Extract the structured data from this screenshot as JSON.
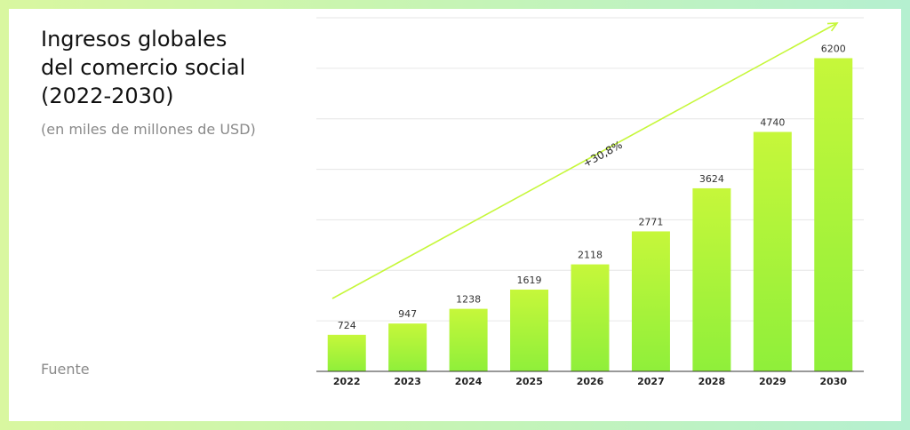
{
  "header": {
    "title_lines": [
      "Ingresos globales",
      "del comercio social",
      "(2022-2030)"
    ],
    "subtitle": "(en miles de millones de USD)"
  },
  "footer": {
    "source": "Fuente"
  },
  "chart_data": {
    "type": "bar",
    "title": "Ingresos globales del comercio social (2022-2030)",
    "subtitle": "(en miles de millones de USD)",
    "categories": [
      "2022",
      "2023",
      "2024",
      "2025",
      "2026",
      "2027",
      "2028",
      "2029",
      "2030"
    ],
    "values": [
      724,
      947,
      1238,
      1619,
      2118,
      2771,
      3624,
      4740,
      6200
    ],
    "ylim": [
      0,
      7000
    ],
    "grid": true,
    "bar_color_top": "#c6f73a",
    "bar_color_bottom": "#8fef3a",
    "annotation": {
      "text": "+30,8%",
      "type": "trend-arrow"
    }
  }
}
